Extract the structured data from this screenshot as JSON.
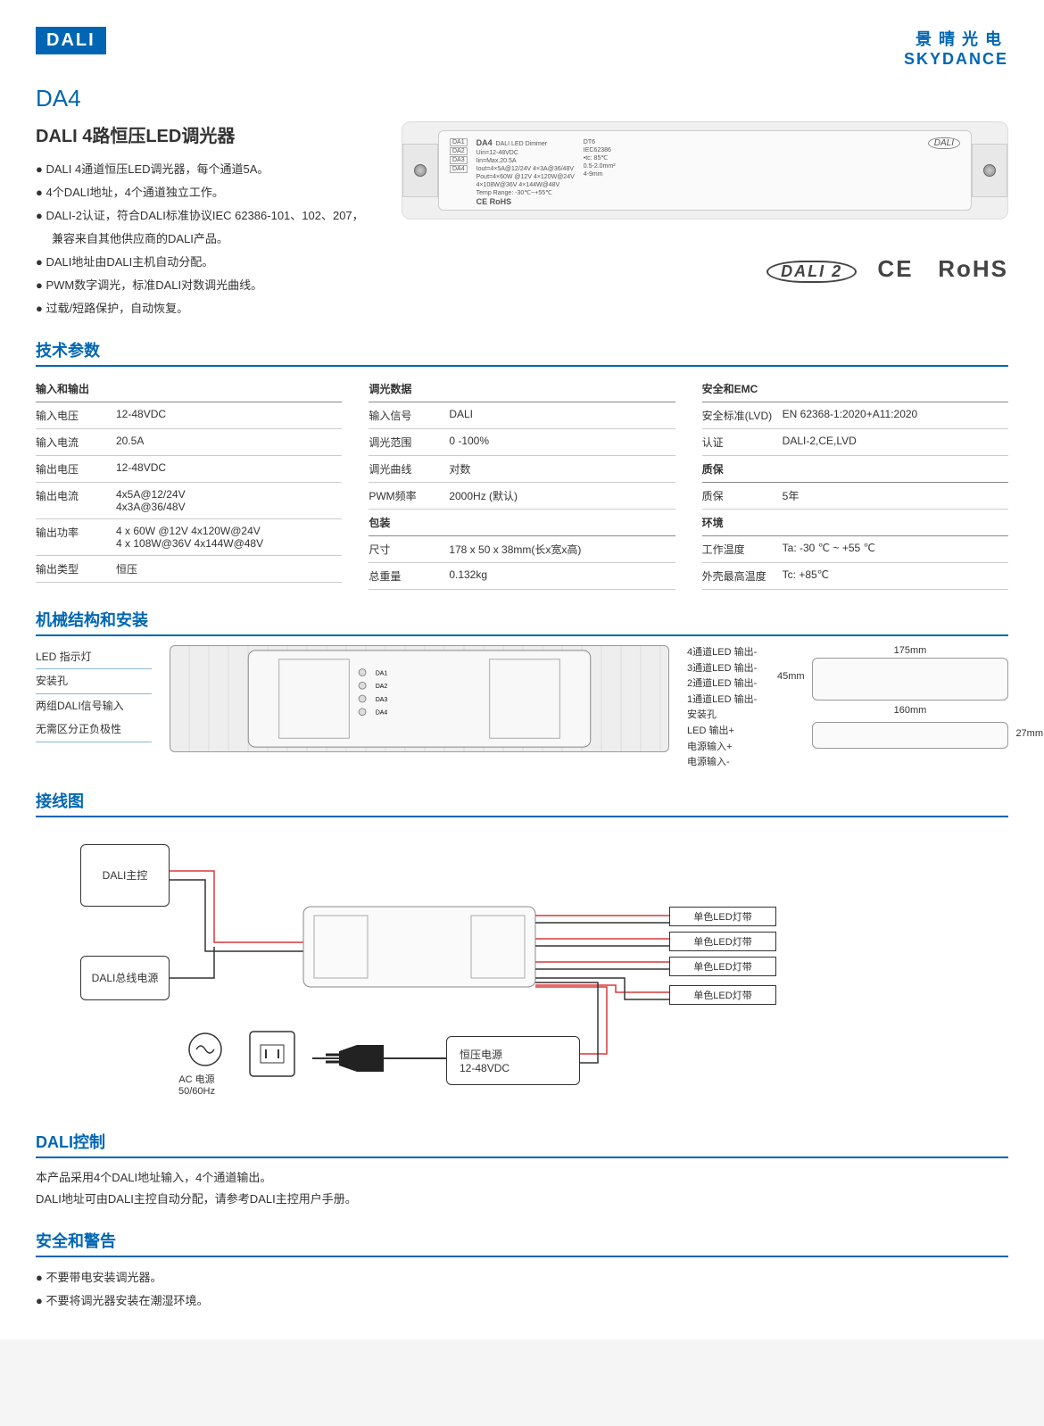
{
  "logo": "DALI",
  "brand": {
    "cn": "景晴光电",
    "en": "SKYDANCE"
  },
  "model": "DA4",
  "title": "DALI 4路恒压LED调光器",
  "bullets": [
    "DALI 4通道恒压LED调光器，每个通道5A。",
    "4个DALI地址，4个通道独立工作。",
    "DALI-2认证，符合DALI标准协议IEC 62386-101、102、207，",
    "    兼容来自其他供应商的DALI产品。",
    "DALI地址由DALI主机自动分配。",
    "PWM数字调光，标准DALI对数调光曲线。",
    "过载/短路保护，自动恢复。"
  ],
  "product_label": {
    "name": "DA4",
    "sub": "DALI LED Dimmer",
    "ch": [
      "DA1",
      "DA2",
      "DA3",
      "DA4"
    ],
    "lines": [
      "Uin=12-48VDC",
      "Iin=Max.20.5A",
      "Iout=4×5A@12/24V  4×3A@36/48V",
      "Pout=4×60W @12V  4×120W@24V",
      "    4×108W@36V  4×144W@48V",
      "Temp Range: -30℃~+55℃"
    ],
    "std": [
      "DT6",
      "IEC62386",
      "•tc: 85℃",
      "0.5-2.0mm²",
      "4-9mm"
    ],
    "cert": "CE RoHS"
  },
  "cert_icons": {
    "dali": "DALI 2",
    "ce": "CE",
    "rohs": "RoHS"
  },
  "sections": {
    "spec": "技术参数",
    "mech": "机械结构和安装",
    "wiring": "接线图",
    "dali": "DALI控制",
    "safety": "安全和警告"
  },
  "spec_cols": [
    {
      "groups": [
        {
          "head": "输入和输出",
          "rows": [
            [
              "输入电压",
              "12-48VDC"
            ],
            [
              "输入电流",
              "20.5A"
            ],
            [
              "输出电压",
              "12-48VDC"
            ],
            [
              "输出电流",
              "4x5A@12/24V\n4x3A@36/48V"
            ],
            [
              "输出功率",
              "4 x 60W @12V 4x120W@24V\n4 x 108W@36V 4x144W@48V"
            ],
            [
              "输出类型",
              "恒压"
            ]
          ]
        }
      ]
    },
    {
      "groups": [
        {
          "head": "调光数据",
          "rows": [
            [
              "输入信号",
              "DALI"
            ],
            [
              "调光范围",
              "0 -100%"
            ],
            [
              "调光曲线",
              "对数"
            ],
            [
              "PWM频率",
              "2000Hz (默认)"
            ]
          ]
        },
        {
          "head": "包装",
          "rows": [
            [
              "尺寸",
              "178 x 50 x 38mm(长x宽x高)"
            ],
            [
              "总重量",
              "0.132kg"
            ]
          ]
        }
      ]
    },
    {
      "groups": [
        {
          "head": "安全和EMC",
          "rows": [
            [
              "安全标准(LVD)",
              "EN 62368-1:2020+A11:2020"
            ],
            [
              "认证",
              "DALI-2,CE,LVD"
            ]
          ]
        },
        {
          "head": "质保",
          "rows": [
            [
              "质保",
              "5年"
            ]
          ]
        },
        {
          "head": "环境",
          "rows": [
            [
              "工作温度",
              "Ta: -30 ℃ ~ +55 ℃"
            ],
            [
              "外壳最高温度",
              "Tc: +85℃"
            ]
          ]
        }
      ]
    }
  ],
  "mech": {
    "left_labels": [
      "LED 指示灯",
      "安装孔",
      "两组DALI信号输入\n无需区分正负极性"
    ],
    "right_labels": [
      "4通道LED 输出-",
      "3通道LED 输出-",
      "2通道LED 输出-",
      "1通道LED 输出-",
      "安装孔",
      "LED 输出+",
      "电源输入+",
      "电源输入-"
    ],
    "dims": {
      "w": "175mm",
      "h": "45mm",
      "inner": "160mm",
      "d": "27mm"
    }
  },
  "wiring_labels": {
    "master": "DALI主控",
    "bus": "DALI总线电源",
    "ac": "AC 电源\n50/60Hz",
    "psu": "恒压电源\n12-48VDC",
    "led": "单色LED灯带"
  },
  "dali_text": [
    "本产品采用4个DALI地址输入，4个通道输出。",
    "DALI地址可由DALI主控自动分配，请参考DALI主控用户手册。"
  ],
  "safety_bullets": [
    "不要带电安装调光器。",
    "不要将调光器安装在潮湿环境。"
  ]
}
